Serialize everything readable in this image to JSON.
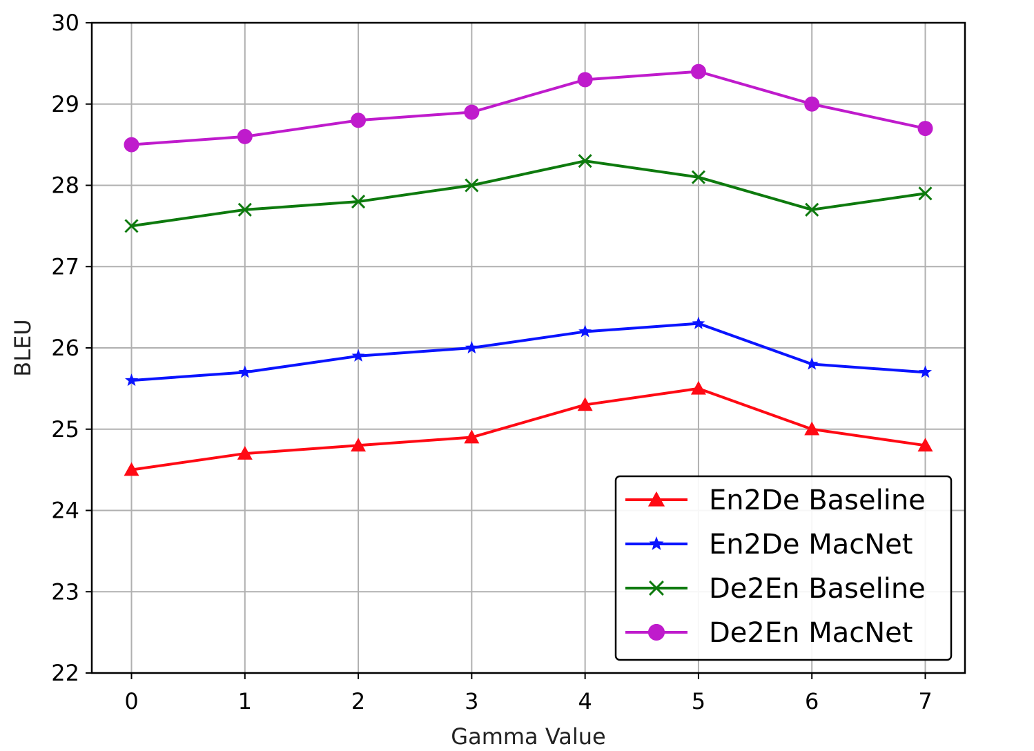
{
  "chart_data": {
    "type": "line",
    "title": "",
    "xlabel": "Gamma Value",
    "ylabel": "BLEU",
    "x": [
      0,
      1,
      2,
      3,
      4,
      5,
      6,
      7
    ],
    "xlim": [
      -0.35,
      7.35
    ],
    "ylim": [
      22,
      30
    ],
    "xticks": [
      "0",
      "1",
      "2",
      "3",
      "4",
      "5",
      "6",
      "7"
    ],
    "yticks": [
      "22",
      "23",
      "24",
      "25",
      "26",
      "27",
      "28",
      "29",
      "30"
    ],
    "grid": true,
    "legend_position": "lower-right",
    "series": [
      {
        "name": "En2De Baseline",
        "color": "#ff0a14",
        "marker": "triangle",
        "values": [
          24.5,
          24.7,
          24.8,
          24.9,
          25.3,
          25.5,
          25.0,
          24.8
        ]
      },
      {
        "name": "En2De MacNet",
        "color": "#0a14ff",
        "marker": "star",
        "values": [
          25.6,
          25.7,
          25.9,
          26.0,
          26.2,
          26.3,
          25.8,
          25.7
        ]
      },
      {
        "name": "De2En Baseline",
        "color": "#0e7a0e",
        "marker": "x",
        "values": [
          27.5,
          27.7,
          27.8,
          28.0,
          28.3,
          28.1,
          27.7,
          27.9
        ]
      },
      {
        "name": "De2En MacNet",
        "color": "#bf1bcc",
        "marker": "circle",
        "values": [
          28.5,
          28.6,
          28.8,
          28.9,
          29.3,
          29.4,
          29.0,
          28.7
        ]
      }
    ]
  }
}
